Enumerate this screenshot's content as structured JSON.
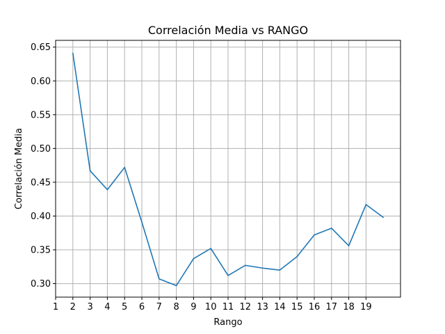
{
  "chart_data": {
    "type": "line",
    "title": "Correlación Media vs RANGO",
    "xlabel": "Rango",
    "ylabel": "Correlación Media",
    "xlim": [
      1,
      21
    ],
    "ylim": [
      0.28,
      0.66
    ],
    "grid": true,
    "x_ticks": [
      1,
      2,
      3,
      4,
      5,
      6,
      7,
      8,
      9,
      10,
      11,
      12,
      13,
      14,
      15,
      16,
      17,
      18,
      19
    ],
    "y_ticks": [
      0.3,
      0.35,
      0.4,
      0.45,
      0.5,
      0.55,
      0.6,
      0.65
    ],
    "line_color": "#1f77b4",
    "series": [
      {
        "x": [
          2,
          3,
          4,
          5,
          6,
          7,
          8,
          9,
          10,
          11,
          12,
          13,
          14,
          15,
          16,
          17,
          18,
          19,
          20
        ],
        "values": [
          0.641,
          0.467,
          0.439,
          0.472,
          0.391,
          0.307,
          0.297,
          0.337,
          0.352,
          0.312,
          0.327,
          0.323,
          0.32,
          0.34,
          0.372,
          0.382,
          0.356,
          0.417,
          0.398
        ]
      }
    ]
  }
}
